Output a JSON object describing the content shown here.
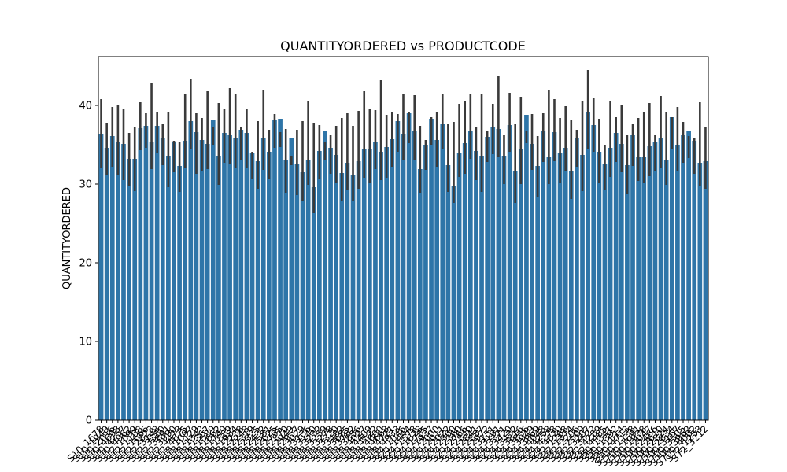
{
  "chart_data": {
    "type": "bar",
    "title": "QUANTITYORDERED vs PRODUCTCODE",
    "xlabel": "",
    "ylabel": "QUANTITYORDERED",
    "ylim": [
      0,
      46.2
    ],
    "yticks": [
      0,
      10,
      20,
      30,
      40
    ],
    "grid": false,
    "legend": "none",
    "bar_color": "#2e75a8",
    "error_bar_color": "#3a3a3a",
    "categories": [
      "S10_1678",
      "S10_1949",
      "S10_2016",
      "S10_4698",
      "S10_4757",
      "S10_4962",
      "S12_1099",
      "S12_1108",
      "S12_1666",
      "S12_2823",
      "S12_3148",
      "S12_3380",
      "S12_3891",
      "S12_3990",
      "S12_4473",
      "S12_4675",
      "S18_1097",
      "S18_1129",
      "S18_1342",
      "S18_1367",
      "S18_1589",
      "S18_1662",
      "S18_1749",
      "S18_1889",
      "S18_1984",
      "S18_2238",
      "S18_2248",
      "S18_2319",
      "S18_2325",
      "S18_2432",
      "S18_2581",
      "S18_2625",
      "S18_2795",
      "S18_2870",
      "S18_2949",
      "S18_2957",
      "S18_3029",
      "S18_3136",
      "S18_3140",
      "S18_3232",
      "S18_3259",
      "S18_3278",
      "S18_3320",
      "S18_3482",
      "S18_3685",
      "S18_3782",
      "S18_3856",
      "S18_4027",
      "S18_4409",
      "S18_4522",
      "S18_4600",
      "S18_4668",
      "S18_4721",
      "S18_4933",
      "S24_1046",
      "S24_1444",
      "S24_1578",
      "S24_1628",
      "S24_1785",
      "S24_1937",
      "S24_2000",
      "S24_2011",
      "S24_2022",
      "S24_2300",
      "S24_2360",
      "S24_2766",
      "S24_2840",
      "S24_2841",
      "S24_2887",
      "S24_2972",
      "S24_3151",
      "S24_3191",
      "S24_3371",
      "S24_3420",
      "S24_3432",
      "S24_3816",
      "S24_3856",
      "S24_3949",
      "S24_3969",
      "S24_4048",
      "S24_4258",
      "S24_4278",
      "S24_4620",
      "S32_1268",
      "S32_1374",
      "S32_2206",
      "S32_2509",
      "S32_3207",
      "S32_3522",
      "S32_4289",
      "S32_4485",
      "S50_1341",
      "S50_1392",
      "S50_1514",
      "S50_4713",
      "S700_1138",
      "S700_1691",
      "S700_1938",
      "S700_2047",
      "S700_2466",
      "S700_2610",
      "S700_2824",
      "S700_2834",
      "S700_3167",
      "S700_3505",
      "S700_3962",
      "S700_4002",
      "S72_1253",
      "S72_3212"
    ],
    "values": [
      36.4,
      34.6,
      36.1,
      35.4,
      35.1,
      33.2,
      33.2,
      37.1,
      37.4,
      35.3,
      37.4,
      35.9,
      33.6,
      35.4,
      32.3,
      35.5,
      38.0,
      36.6,
      35.6,
      35.1,
      38.2,
      33.6,
      36.5,
      36.2,
      35.9,
      36.9,
      36.5,
      34.0,
      32.9,
      35.9,
      34.1,
      38.2,
      38.3,
      33.0,
      35.8,
      32.6,
      31.5,
      33.1,
      29.6,
      34.2,
      36.8,
      34.6,
      33.7,
      31.4,
      32.7,
      31.2,
      32.9,
      34.4,
      34.5,
      35.3,
      34.1,
      34.7,
      35.7,
      38.0,
      36.4,
      39.0,
      36.8,
      31.9,
      35.0,
      38.3,
      35.6,
      37.6,
      32.4,
      29.7,
      34.0,
      35.2,
      36.8,
      34.2,
      33.6,
      36.0,
      37.2,
      37.0,
      33.6,
      37.5,
      31.6,
      34.4,
      38.8,
      35.1,
      32.3,
      36.8,
      33.5,
      36.6,
      34.0,
      34.6,
      31.7,
      35.8,
      33.7,
      39.1,
      37.5,
      34.1,
      32.5,
      34.6,
      36.5,
      35.1,
      32.4,
      36.2,
      33.4,
      33.4,
      34.9,
      35.3,
      35.9,
      33.0,
      38.5,
      35.0,
      36.3,
      36.8,
      35.5,
      32.7,
      32.9
    ],
    "error_low": [
      32.0,
      31.2,
      32.2,
      31.1,
      30.5,
      29.7,
      29.1,
      34.3,
      34.6,
      31.9,
      33.9,
      32.4,
      29.6,
      31.5,
      29.0,
      32.0,
      34.5,
      31.3,
      31.7,
      31.9,
      35.0,
      29.9,
      32.7,
      32.5,
      32.0,
      33.1,
      32.0,
      30.6,
      29.4,
      31.8,
      30.7,
      34.6,
      34.7,
      28.9,
      32.4,
      28.6,
      27.8,
      29.9,
      26.3,
      30.6,
      33.0,
      31.3,
      30.2,
      27.9,
      29.3,
      27.9,
      29.4,
      30.8,
      30.2,
      31.9,
      30.5,
      30.8,
      32.2,
      34.1,
      33.1,
      35.2,
      33.0,
      28.9,
      31.8,
      35.0,
      32.2,
      34.5,
      29.0,
      27.6,
      30.9,
      31.3,
      33.2,
      30.5,
      29.0,
      32.8,
      33.8,
      33.5,
      30.0,
      34.1,
      27.6,
      30.0,
      35.2,
      31.8,
      28.3,
      32.8,
      30.0,
      32.9,
      30.1,
      31.6,
      28.1,
      32.2,
      29.1,
      34.4,
      34.1,
      30.1,
      29.3,
      30.9,
      32.8,
      31.5,
      28.8,
      32.3,
      30.4,
      30.2,
      31.0,
      31.6,
      32.1,
      29.9,
      34.4,
      31.6,
      32.7,
      33.3,
      31.3,
      29.7,
      29.4
    ],
    "error_high": [
      40.8,
      37.8,
      39.8,
      40.0,
      39.5,
      36.5,
      37.2,
      40.4,
      39.0,
      42.8,
      39.1,
      37.6,
      39.1,
      35.5,
      35.4,
      41.4,
      43.3,
      39.0,
      38.4,
      41.8,
      37.3,
      40.3,
      39.5,
      42.2,
      41.4,
      37.2,
      39.6,
      34.1,
      38.0,
      41.9,
      36.9,
      38.9,
      36.6,
      37.0,
      33.6,
      36.9,
      38.0,
      40.6,
      37.8,
      37.5,
      35.3,
      36.3,
      37.4,
      38.4,
      39.0,
      37.4,
      39.3,
      41.8,
      39.6,
      39.4,
      43.2,
      38.8,
      39.2,
      38.9,
      41.5,
      39.2,
      41.3,
      37.4,
      35.6,
      38.5,
      39.2,
      41.5,
      37.7,
      37.9,
      40.2,
      40.6,
      41.5,
      37.3,
      41.4,
      36.8,
      40.2,
      43.7,
      36.2,
      41.6,
      37.6,
      41.1,
      36.7,
      38.9,
      36.1,
      39.0,
      41.9,
      40.8,
      38.4,
      39.9,
      38.2,
      36.9,
      40.6,
      44.5,
      40.9,
      38.3,
      35.0,
      40.6,
      38.5,
      40.1,
      36.3,
      37.6,
      38.4,
      39.2,
      40.3,
      36.3,
      41.2,
      39.1,
      38.5,
      39.8,
      37.9,
      36.1,
      35.9,
      40.4,
      37.3
    ]
  }
}
